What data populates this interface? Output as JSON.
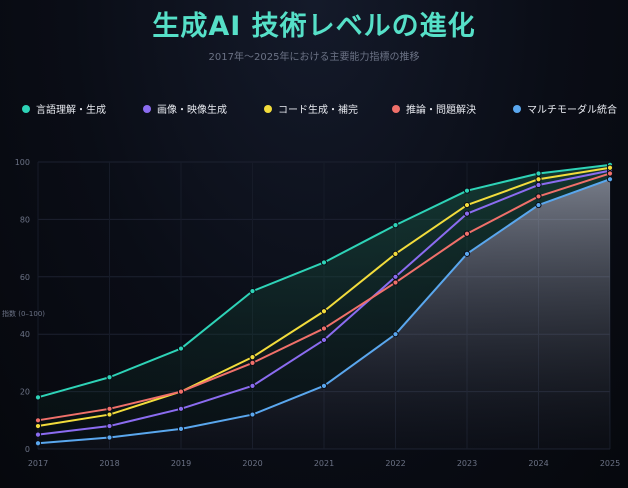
{
  "title": "生成AI 技術レベルの進化",
  "subtitle": "2017年〜2025年における主要能力指標の推移",
  "chart_data": {
    "type": "line",
    "title": "生成AI 技術レベルの進化",
    "subtitle": "2017年〜2025年における主要能力指標の推移",
    "xlabel": "",
    "ylabel": "指数 (0–100)",
    "x": [
      "2017",
      "2018",
      "2019",
      "2020",
      "2021",
      "2022",
      "2023",
      "2024",
      "2025"
    ],
    "ylim": [
      0,
      100
    ],
    "yticks": [
      0,
      20,
      40,
      60,
      80,
      100
    ],
    "grid": true,
    "legend_position": "top",
    "series": [
      {
        "name": "言語理解・生成",
        "color": "#2ed3b7",
        "values": [
          18,
          25,
          35,
          55,
          65,
          78,
          90,
          96,
          99
        ]
      },
      {
        "name": "画像・映像生成",
        "color": "#8b6cf0",
        "values": [
          5,
          8,
          14,
          22,
          38,
          60,
          82,
          92,
          97
        ]
      },
      {
        "name": "コード生成・補完",
        "color": "#f2dc3c",
        "values": [
          8,
          12,
          20,
          32,
          48,
          68,
          85,
          94,
          98
        ]
      },
      {
        "name": "推論・問題解決",
        "color": "#f0706a",
        "values": [
          10,
          14,
          20,
          30,
          42,
          58,
          75,
          88,
          96
        ]
      },
      {
        "name": "マルチモーダル統合",
        "color": "#5aa7ee",
        "values": [
          2,
          4,
          7,
          12,
          22,
          40,
          68,
          85,
          94
        ]
      }
    ]
  }
}
